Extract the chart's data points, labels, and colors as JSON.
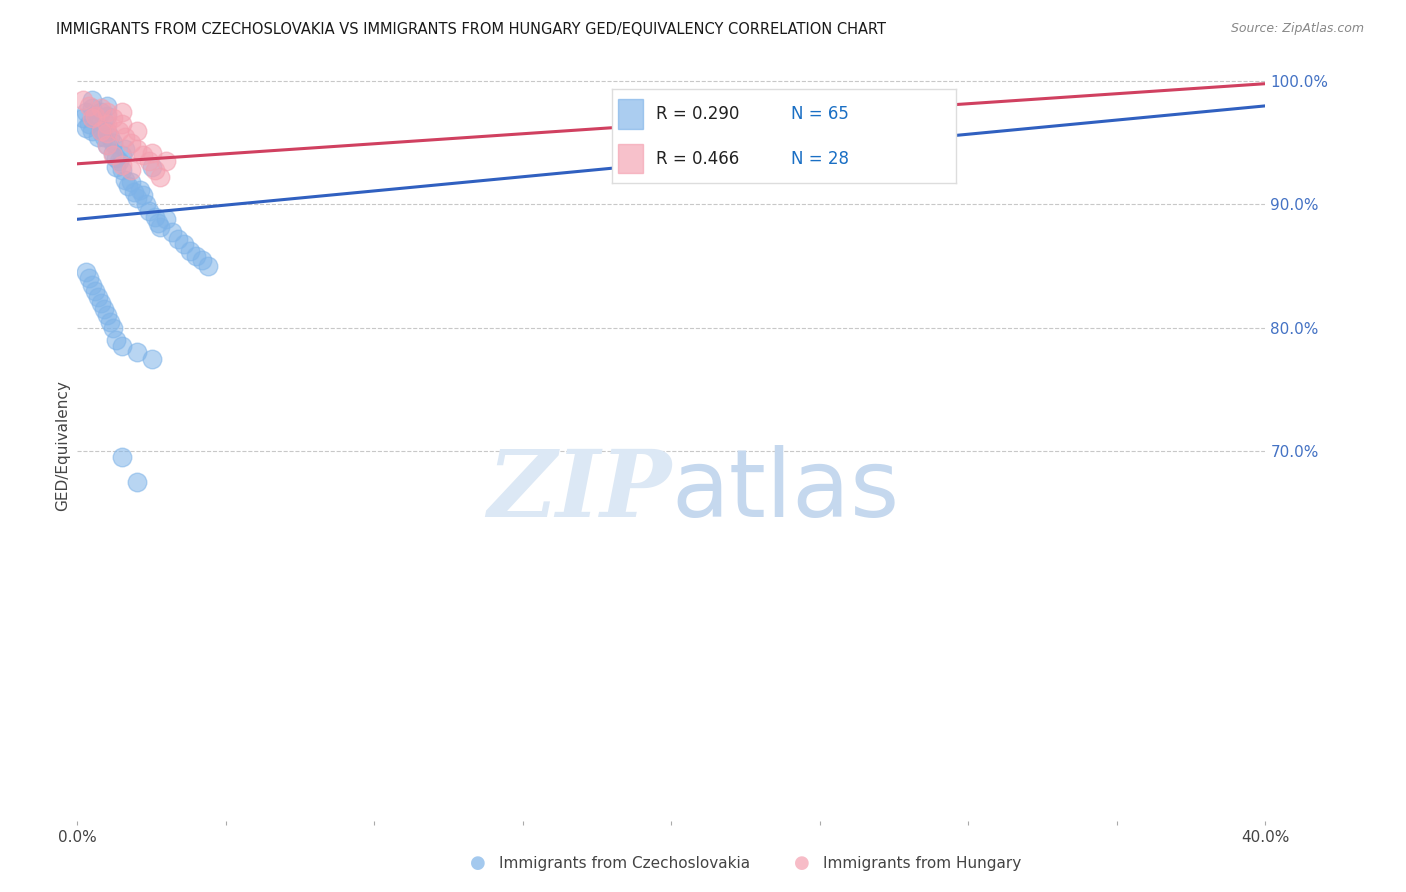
{
  "title": "IMMIGRANTS FROM CZECHOSLOVAKIA VS IMMIGRANTS FROM HUNGARY GED/EQUIVALENCY CORRELATION CHART",
  "source": "Source: ZipAtlas.com",
  "ylabel": "GED/Equivalency",
  "xlim": [
    0.0,
    0.4
  ],
  "ylim": [
    0.4,
    1.008
  ],
  "r_blue": 0.29,
  "n_blue": 65,
  "r_pink": 0.466,
  "n_pink": 28,
  "blue_color": "#7eb3e8",
  "pink_color": "#f4a0b0",
  "blue_line_color": "#3060c0",
  "pink_line_color": "#d04060",
  "watermark_color": "#dce8f5",
  "legend_label_blue": "Immigrants from Czechoslovakia",
  "legend_label_pink": "Immigrants from Hungary",
  "blue_x": [
    0.002,
    0.003,
    0.003,
    0.004,
    0.005,
    0.005,
    0.005,
    0.006,
    0.007,
    0.007,
    0.008,
    0.008,
    0.009,
    0.009,
    0.01,
    0.01,
    0.01,
    0.01,
    0.011,
    0.012,
    0.012,
    0.013,
    0.013,
    0.014,
    0.015,
    0.015,
    0.016,
    0.016,
    0.017,
    0.018,
    0.019,
    0.02,
    0.021,
    0.022,
    0.023,
    0.024,
    0.025,
    0.026,
    0.027,
    0.028,
    0.03,
    0.032,
    0.034,
    0.036,
    0.038,
    0.04,
    0.042,
    0.044,
    0.003,
    0.004,
    0.005,
    0.006,
    0.007,
    0.008,
    0.009,
    0.01,
    0.011,
    0.012,
    0.013,
    0.015,
    0.02,
    0.025,
    0.22,
    0.015,
    0.02
  ],
  "blue_y": [
    0.97,
    0.962,
    0.975,
    0.965,
    0.985,
    0.978,
    0.96,
    0.972,
    0.968,
    0.955,
    0.975,
    0.96,
    0.955,
    0.968,
    0.98,
    0.972,
    0.96,
    0.948,
    0.955,
    0.95,
    0.942,
    0.938,
    0.93,
    0.935,
    0.94,
    0.928,
    0.945,
    0.92,
    0.915,
    0.918,
    0.91,
    0.905,
    0.912,
    0.908,
    0.9,
    0.895,
    0.93,
    0.89,
    0.885,
    0.882,
    0.888,
    0.878,
    0.872,
    0.868,
    0.862,
    0.858,
    0.855,
    0.85,
    0.845,
    0.84,
    0.835,
    0.83,
    0.825,
    0.82,
    0.815,
    0.81,
    0.805,
    0.8,
    0.79,
    0.785,
    0.78,
    0.775,
    0.948,
    0.695,
    0.675
  ],
  "pink_x": [
    0.002,
    0.004,
    0.006,
    0.008,
    0.01,
    0.01,
    0.01,
    0.012,
    0.014,
    0.015,
    0.016,
    0.018,
    0.02,
    0.02,
    0.022,
    0.024,
    0.025,
    0.026,
    0.028,
    0.03,
    0.005,
    0.008,
    0.01,
    0.012,
    0.015,
    0.018,
    0.25,
    0.015
  ],
  "pink_y": [
    0.985,
    0.98,
    0.972,
    0.978,
    0.975,
    0.965,
    0.958,
    0.97,
    0.96,
    0.965,
    0.955,
    0.95,
    0.96,
    0.945,
    0.94,
    0.935,
    0.942,
    0.928,
    0.922,
    0.935,
    0.97,
    0.96,
    0.948,
    0.94,
    0.932,
    0.928,
    0.98,
    0.975
  ],
  "blue_line_x0": 0.0,
  "blue_line_y0": 0.888,
  "blue_line_x1": 0.4,
  "blue_line_y1": 0.98,
  "pink_line_x0": 0.0,
  "pink_line_y0": 0.933,
  "pink_line_x1": 0.4,
  "pink_line_y1": 0.998
}
